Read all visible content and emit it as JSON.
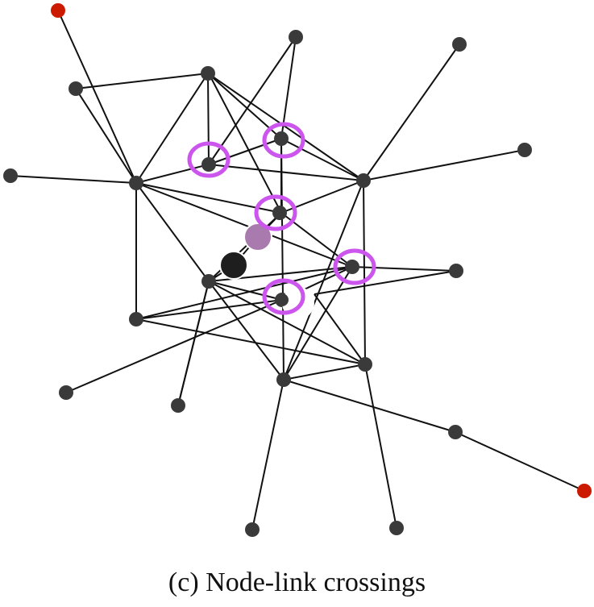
{
  "caption": "(c)  Node-link crossings",
  "colors": {
    "node": "#3a3a3a",
    "edge": "#111111",
    "endpoint": "#cc1a00",
    "crossing_ring": "#cc55ee",
    "moving_node": "#a97aad",
    "dark_node": "#1e1e1e",
    "background": "#ffffff"
  },
  "graph": {
    "nodes": [
      {
        "id": "n1",
        "type": "endpoint"
      },
      {
        "id": "n2",
        "type": "normal"
      },
      {
        "id": "n3",
        "type": "normal"
      },
      {
        "id": "n4",
        "type": "normal"
      },
      {
        "id": "n5",
        "type": "normal"
      },
      {
        "id": "n6",
        "type": "normal"
      },
      {
        "id": "n7",
        "type": "normal"
      },
      {
        "id": "n8",
        "type": "normal"
      },
      {
        "id": "n9",
        "type": "normal"
      },
      {
        "id": "n10",
        "type": "normal"
      },
      {
        "id": "n11",
        "type": "normal"
      },
      {
        "id": "n12",
        "type": "normal"
      },
      {
        "id": "n13",
        "type": "normal"
      },
      {
        "id": "n14",
        "type": "normal"
      },
      {
        "id": "n15",
        "type": "normal"
      },
      {
        "id": "n16",
        "type": "normal"
      },
      {
        "id": "n17",
        "type": "normal"
      },
      {
        "id": "n18",
        "type": "normal"
      },
      {
        "id": "n19",
        "type": "normal"
      },
      {
        "id": "n20",
        "type": "normal"
      },
      {
        "id": "n21",
        "type": "normal"
      },
      {
        "id": "n22",
        "type": "normal"
      },
      {
        "id": "n23",
        "type": "normal"
      },
      {
        "id": "n24",
        "type": "endpoint"
      },
      {
        "id": "n25",
        "type": "moving"
      },
      {
        "id": "n26",
        "type": "dark"
      },
      {
        "id": "n27",
        "type": "hidden"
      }
    ],
    "edges": [
      [
        "n1",
        "n7"
      ],
      [
        "n2",
        "n3"
      ],
      [
        "n2",
        "n7"
      ],
      [
        "n3",
        "n7"
      ],
      [
        "n3",
        "n8"
      ],
      [
        "n3",
        "n9"
      ],
      [
        "n3",
        "n10"
      ],
      [
        "n3",
        "n11"
      ],
      [
        "n4",
        "n8"
      ],
      [
        "n4",
        "n7"
      ],
      [
        "n5",
        "n10"
      ],
      [
        "n6",
        "n10"
      ],
      [
        "n7",
        "n8"
      ],
      [
        "n7",
        "n9"
      ],
      [
        "n7",
        "n11"
      ],
      [
        "n7",
        "n12"
      ],
      [
        "n7",
        "n14"
      ],
      [
        "n8",
        "n9"
      ],
      [
        "n8",
        "n10"
      ],
      [
        "n9",
        "n10"
      ],
      [
        "n9",
        "n15"
      ],
      [
        "n9",
        "n16"
      ],
      [
        "n10",
        "n11"
      ],
      [
        "n10",
        "n18"
      ],
      [
        "n10",
        "n13"
      ],
      [
        "n11",
        "n14"
      ],
      [
        "n11",
        "n12"
      ],
      [
        "n12",
        "n14"
      ],
      [
        "n12",
        "n15"
      ],
      [
        "n12",
        "n16"
      ],
      [
        "n12",
        "n18"
      ],
      [
        "n12",
        "n20"
      ],
      [
        "n12",
        "n17"
      ],
      [
        "n12",
        "n27"
      ],
      [
        "n13",
        "n14"
      ],
      [
        "n13",
        "n27"
      ],
      [
        "n14",
        "n16"
      ],
      [
        "n14",
        "n17"
      ],
      [
        "n15",
        "n17"
      ],
      [
        "n15",
        "n18"
      ],
      [
        "n15",
        "n16"
      ],
      [
        "n16",
        "n18"
      ],
      [
        "n16",
        "n20"
      ],
      [
        "n16",
        "n22"
      ],
      [
        "n17",
        "n18"
      ],
      [
        "n17",
        "n23"
      ],
      [
        "n18",
        "n21"
      ],
      [
        "n18",
        "n23"
      ],
      [
        "n19",
        "n27"
      ],
      [
        "n20",
        "n27"
      ],
      [
        "n23",
        "n24"
      ],
      [
        "n12",
        "n25"
      ],
      [
        "n25",
        "n26"
      ],
      [
        "n26",
        "n27"
      ]
    ],
    "crossing_markers": [
      {
        "id": "c1",
        "node": "n8"
      },
      {
        "id": "c2",
        "node": "n9"
      },
      {
        "id": "c3",
        "node": "n11"
      },
      {
        "id": "c4",
        "node": "n15"
      },
      {
        "id": "c5",
        "node": "n16"
      }
    ]
  }
}
